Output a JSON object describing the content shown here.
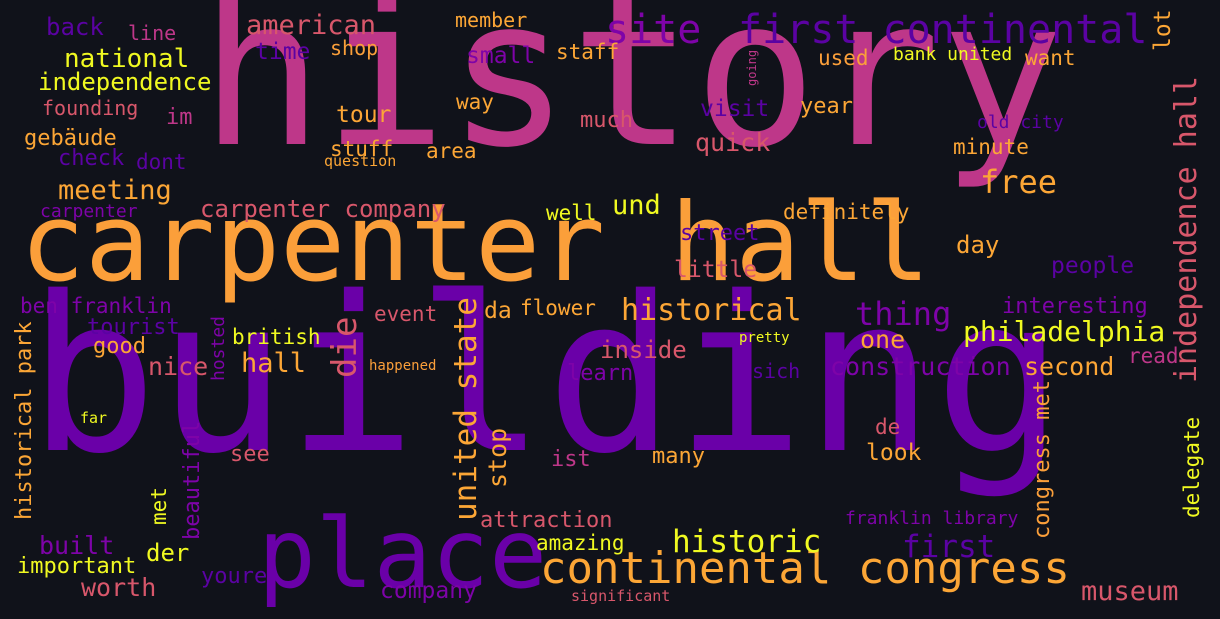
{
  "words": [
    {
      "text": "history",
      "color": "#be3789"
    },
    {
      "text": "building",
      "color": "#6a00a8"
    },
    {
      "text": "carpenter hall",
      "color": "#fb9f3a"
    },
    {
      "text": "place",
      "color": "#6a00a8"
    },
    {
      "text": "continental congress",
      "color": "#fca636"
    },
    {
      "text": "first continental",
      "color": "#5b02a3"
    },
    {
      "text": "independence hall",
      "color": "#d8576b"
    },
    {
      "text": "site",
      "color": "#7e03a8"
    },
    {
      "text": "american",
      "color": "#d8576b"
    },
    {
      "text": "national",
      "color": "#f0f921"
    },
    {
      "text": "independence",
      "color": "#f0f921"
    },
    {
      "text": "back",
      "color": "#5b02a3"
    },
    {
      "text": "line",
      "color": "#be3789"
    },
    {
      "text": "time",
      "color": "#5b02a3"
    },
    {
      "text": "shop",
      "color": "#fb9f3a"
    },
    {
      "text": "member",
      "color": "#fca636"
    },
    {
      "text": "small",
      "color": "#7e03a8"
    },
    {
      "text": "staff",
      "color": "#fca636"
    },
    {
      "text": "used",
      "color": "#fb9f3a"
    },
    {
      "text": "bank united",
      "color": "#f0f921"
    },
    {
      "text": "want",
      "color": "#fca636"
    },
    {
      "text": "lot",
      "color": "#fca636"
    },
    {
      "text": "going",
      "color": "#be3789"
    },
    {
      "text": "founding",
      "color": "#d8576b"
    },
    {
      "text": "im",
      "color": "#be3789"
    },
    {
      "text": "tour",
      "color": "#fca636"
    },
    {
      "text": "way",
      "color": "#fca636"
    },
    {
      "text": "visit",
      "color": "#5b02a3"
    },
    {
      "text": "year",
      "color": "#fca636"
    },
    {
      "text": "old city",
      "color": "#5b02a3"
    },
    {
      "text": "gebäude",
      "color": "#fca636"
    },
    {
      "text": "check",
      "color": "#5b02a3"
    },
    {
      "text": "dont",
      "color": "#5b02a3"
    },
    {
      "text": "stuff",
      "color": "#fca636"
    },
    {
      "text": "question",
      "color": "#fca636"
    },
    {
      "text": "area",
      "color": "#fca636"
    },
    {
      "text": "much",
      "color": "#d8576b"
    },
    {
      "text": "quick",
      "color": "#d8576b"
    },
    {
      "text": "minute",
      "color": "#fca636"
    },
    {
      "text": "free",
      "color": "#fca636"
    },
    {
      "text": "meeting",
      "color": "#fca636"
    },
    {
      "text": "carpenter",
      "color": "#7e03a8"
    },
    {
      "text": "carpenter company",
      "color": "#d8576b"
    },
    {
      "text": "und",
      "color": "#f0f921"
    },
    {
      "text": "well",
      "color": "#f0f921"
    },
    {
      "text": "definitely",
      "color": "#fca636"
    },
    {
      "text": "street",
      "color": "#5b02a3"
    },
    {
      "text": "day",
      "color": "#fca636"
    },
    {
      "text": "little",
      "color": "#d8576b"
    },
    {
      "text": "people",
      "color": "#5b02a3"
    },
    {
      "text": "ben franklin",
      "color": "#7e03a8"
    },
    {
      "text": "tourist",
      "color": "#5b02a3"
    },
    {
      "text": "hosted",
      "color": "#7e03a8"
    },
    {
      "text": "good",
      "color": "#fca636"
    },
    {
      "text": "british",
      "color": "#f0f921"
    },
    {
      "text": "event",
      "color": "#d8576b"
    },
    {
      "text": "da",
      "color": "#fca636"
    },
    {
      "text": "flower",
      "color": "#fca636"
    },
    {
      "text": "historical",
      "color": "#fca636"
    },
    {
      "text": "thing",
      "color": "#7e03a8"
    },
    {
      "text": "interesting",
      "color": "#7e03a8"
    },
    {
      "text": "die",
      "color": "#d8576b"
    },
    {
      "text": "one",
      "color": "#fca636"
    },
    {
      "text": "philadelphia",
      "color": "#f0f921"
    },
    {
      "text": "pretty",
      "color": "#f0f921"
    },
    {
      "text": "inside",
      "color": "#d8576b"
    },
    {
      "text": "nice",
      "color": "#d8576b"
    },
    {
      "text": "hall",
      "color": "#fca636"
    },
    {
      "text": "happened",
      "color": "#fb9f3a"
    },
    {
      "text": "construction",
      "color": "#7e03a8"
    },
    {
      "text": "read",
      "color": "#be3789"
    },
    {
      "text": "sich",
      "color": "#5b02a3"
    },
    {
      "text": "second",
      "color": "#fca636"
    },
    {
      "text": "learn",
      "color": "#7e03a8"
    },
    {
      "text": "united state",
      "color": "#fca636"
    },
    {
      "text": "historical park",
      "color": "#fca636"
    },
    {
      "text": "far",
      "color": "#f0f921"
    },
    {
      "text": "stop",
      "color": "#fca636"
    },
    {
      "text": "congress met",
      "color": "#fb9f3a"
    },
    {
      "text": "de",
      "color": "#d8576b"
    },
    {
      "text": "see",
      "color": "#d8576b"
    },
    {
      "text": "ist",
      "color": "#be3789"
    },
    {
      "text": "many",
      "color": "#fca636"
    },
    {
      "text": "look",
      "color": "#fca636"
    },
    {
      "text": "delegate",
      "color": "#f0f921"
    },
    {
      "text": "beautiful",
      "color": "#7e03a8"
    },
    {
      "text": "met",
      "color": "#f0f921"
    },
    {
      "text": "attraction",
      "color": "#d8576b"
    },
    {
      "text": "franklin library",
      "color": "#7e03a8"
    },
    {
      "text": "historic",
      "color": "#f0f921"
    },
    {
      "text": "built",
      "color": "#7e03a8"
    },
    {
      "text": "der",
      "color": "#f0f921"
    },
    {
      "text": "amazing",
      "color": "#f0f921"
    },
    {
      "text": "first",
      "color": "#5b02a3"
    },
    {
      "text": "important",
      "color": "#f0f921"
    },
    {
      "text": "worth",
      "color": "#d8576b"
    },
    {
      "text": "youre",
      "color": "#5b02a3"
    },
    {
      "text": "company",
      "color": "#7e03a8"
    },
    {
      "text": "significant",
      "color": "#d8576b"
    },
    {
      "text": "museum",
      "color": "#d8576b"
    }
  ]
}
